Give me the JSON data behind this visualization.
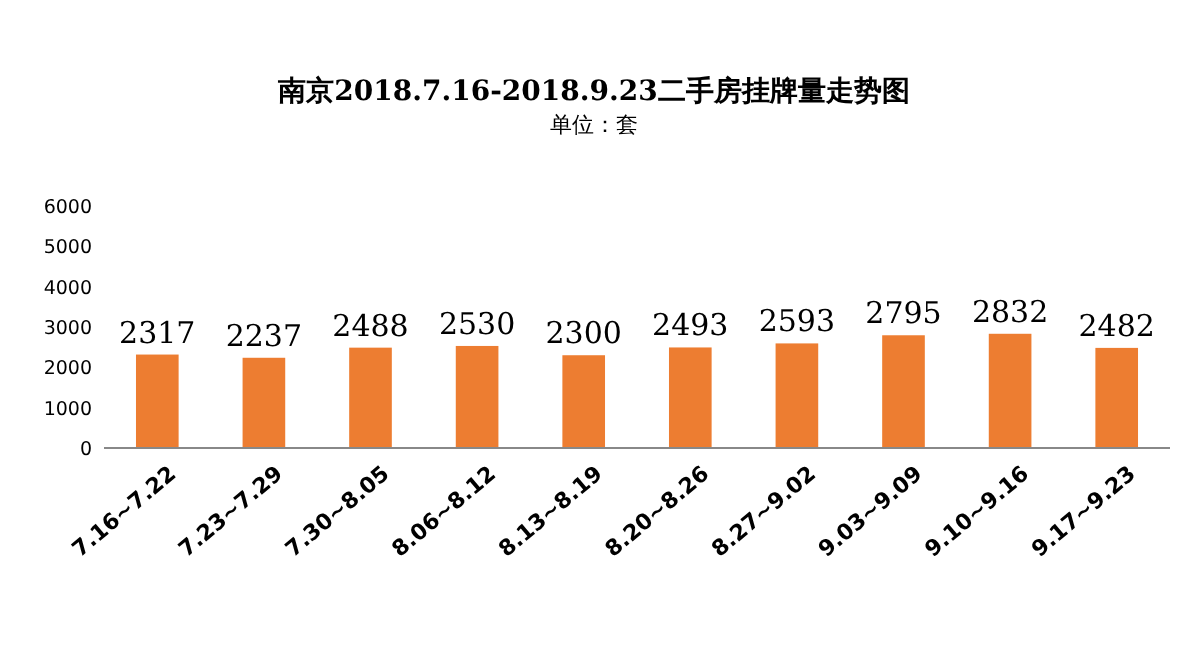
{
  "chart_data": {
    "type": "bar",
    "title": "南京2018.7.16-2018.9.23二手房挂牌量走势图",
    "subtitle": "单位：套",
    "categories": [
      "7.16~7.22",
      "7.23~7.29",
      "7.30~8.05",
      "8.06~8.12",
      "8.13~8.19",
      "8.20~8.26",
      "8.27~9.02",
      "9.03~9.09",
      "9.10~9.16",
      "9.17~9.23"
    ],
    "values": [
      2317,
      2237,
      2488,
      2530,
      2300,
      2493,
      2593,
      2795,
      2832,
      2482
    ],
    "color": "#ed7d31",
    "ylim": [
      0,
      6000
    ],
    "yticks": [
      0,
      1000,
      2000,
      3000,
      4000,
      5000,
      6000
    ],
    "data_labels": true
  }
}
